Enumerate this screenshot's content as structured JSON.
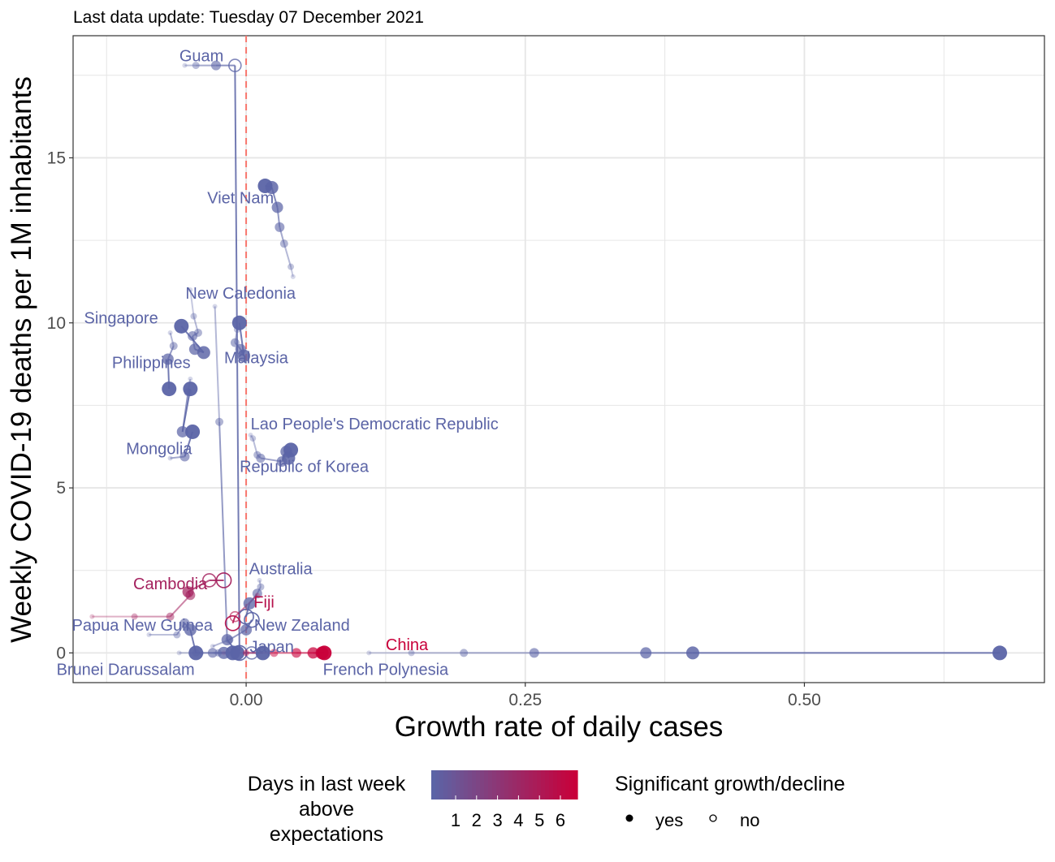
{
  "subtitle": "Last data update: Tuesday 07 December 2021",
  "chart_data": {
    "type": "scatter",
    "xlabel": "Growth rate of daily cases",
    "ylabel": "Weekly COVID-19 deaths per 1M inhabitants",
    "xlim": [
      -0.155,
      0.715
    ],
    "ylim": [
      -0.9,
      18.7
    ],
    "x_ticks": [
      0,
      0.25,
      0.5
    ],
    "x_tick_labels": [
      "0.00",
      "0.25",
      "0.50"
    ],
    "y_ticks": [
      0,
      5,
      10,
      15
    ],
    "y_tick_labels": [
      "0",
      "5",
      "10",
      "15"
    ],
    "grid": true,
    "reference_line_x": 0,
    "reference_line_color": "#f8766d",
    "color_low": "#5b64a6",
    "color_high": "#c8003a",
    "series": [
      {
        "name": "Guam",
        "label_at": [
          -0.04,
          18.1
        ],
        "days_above": 0,
        "points": [
          [
            -0.055,
            17.8
          ],
          [
            -0.045,
            17.8
          ],
          [
            -0.027,
            17.8
          ],
          [
            -0.01,
            17.8
          ],
          [
            -0.006,
            0.0
          ]
        ],
        "significant": [
          true,
          true,
          true,
          false,
          false
        ]
      },
      {
        "name": "Viet Nam",
        "label_at": [
          -0.005,
          13.8
        ],
        "days_above": 0,
        "points": [
          [
            0.042,
            11.4
          ],
          [
            0.04,
            11.7
          ],
          [
            0.034,
            12.4
          ],
          [
            0.03,
            12.9
          ],
          [
            0.028,
            13.5
          ],
          [
            0.023,
            14.1
          ],
          [
            0.017,
            14.15
          ]
        ],
        "significant": [
          true,
          true,
          true,
          true,
          true,
          true,
          true
        ]
      },
      {
        "name": "New Caledonia",
        "label_at": [
          -0.005,
          10.9
        ],
        "days_above": 0,
        "points": [
          [
            -0.028,
            10.5
          ],
          [
            -0.024,
            7.0
          ],
          [
            -0.017,
            0.4
          ],
          [
            -0.008,
            0.0
          ]
        ],
        "significant": [
          true,
          true,
          true,
          true
        ]
      },
      {
        "name": "Singapore",
        "label_at": [
          -0.112,
          10.15
        ],
        "days_above": 0,
        "points": [
          [
            -0.05,
            11.0
          ],
          [
            -0.047,
            10.2
          ],
          [
            -0.043,
            9.7
          ],
          [
            -0.048,
            9.6
          ],
          [
            -0.046,
            9.2
          ],
          [
            -0.038,
            9.1
          ],
          [
            -0.058,
            9.9
          ]
        ],
        "significant": [
          true,
          true,
          true,
          true,
          true,
          true,
          true
        ]
      },
      {
        "name": "Philippines",
        "label_at": [
          -0.085,
          8.8
        ],
        "days_above": 0,
        "points": [
          [
            -0.068,
            9.7
          ],
          [
            -0.065,
            9.3
          ],
          [
            -0.07,
            8.9
          ],
          [
            -0.069,
            8.0
          ]
        ],
        "significant": [
          true,
          true,
          true,
          true
        ]
      },
      {
        "name": "Malaysia",
        "label_at": [
          0.009,
          8.95
        ],
        "days_above": 0,
        "points": [
          [
            -0.01,
            10.1
          ],
          [
            -0.008,
            9.8
          ],
          [
            -0.01,
            9.4
          ],
          [
            -0.005,
            9.2
          ],
          [
            -0.002,
            9.0
          ],
          [
            -0.006,
            10.0
          ]
        ],
        "significant": [
          true,
          true,
          true,
          true,
          true,
          true
        ]
      },
      {
        "name": "Lao People's Democratic Republic",
        "label_at": [
          0.115,
          6.95
        ],
        "days_above": 0,
        "points": [
          [
            -0.05,
            8.3
          ],
          [
            -0.052,
            7.9
          ],
          [
            -0.057,
            6.7
          ],
          [
            -0.05,
            8.0
          ]
        ],
        "significant": [
          true,
          true,
          true,
          true
        ]
      },
      {
        "name": "Republic of Korea",
        "label_at": [
          0.052,
          5.65
        ],
        "days_above": 0,
        "points": [
          [
            0.004,
            6.6
          ],
          [
            0.006,
            6.5
          ],
          [
            0.01,
            6.0
          ],
          [
            0.013,
            5.9
          ],
          [
            0.032,
            5.8
          ],
          [
            0.036,
            6.1
          ],
          [
            0.038,
            5.9
          ],
          [
            0.04,
            6.15
          ]
        ],
        "significant": [
          true,
          true,
          true,
          true,
          true,
          true,
          true,
          true
        ]
      },
      {
        "name": "Mongolia",
        "label_at": [
          -0.078,
          6.2
        ],
        "days_above": 0,
        "points": [
          [
            -0.068,
            5.9
          ],
          [
            -0.055,
            5.95
          ],
          [
            -0.048,
            6.7
          ]
        ],
        "significant": [
          true,
          true,
          true
        ]
      },
      {
        "name": "Australia",
        "label_at": [
          0.031,
          2.55
        ],
        "days_above": 0,
        "points": [
          [
            0.012,
            2.2
          ],
          [
            0.013,
            2.0
          ],
          [
            0.01,
            1.8
          ],
          [
            0.003,
            1.5
          ],
          [
            0.0,
            1.1
          ]
        ],
        "significant": [
          true,
          true,
          true,
          true,
          false
        ]
      },
      {
        "name": "Cambodia",
        "label_at": [
          -0.068,
          2.1
        ],
        "days_above": 4,
        "points": [
          [
            -0.138,
            1.1
          ],
          [
            -0.1,
            1.1
          ],
          [
            -0.068,
            1.1
          ],
          [
            -0.05,
            1.75
          ],
          [
            -0.052,
            1.85
          ],
          [
            -0.033,
            2.2
          ],
          [
            -0.02,
            2.2
          ]
        ],
        "significant": [
          true,
          true,
          true,
          true,
          true,
          false,
          false
        ]
      },
      {
        "name": "Fiji",
        "label_at": [
          0.016,
          1.55
        ],
        "days_above": 5,
        "points": [
          [
            0.01,
            1.75
          ],
          [
            -0.01,
            1.1
          ],
          [
            -0.012,
            0.9
          ]
        ],
        "significant": [
          true,
          false,
          false
        ]
      },
      {
        "name": "Papua New Guinea",
        "label_at": [
          -0.093,
          0.85
        ],
        "days_above": 0,
        "points": [
          [
            -0.087,
            0.55
          ],
          [
            -0.062,
            0.55
          ],
          [
            -0.055,
            0.9
          ],
          [
            -0.05,
            0.7
          ],
          [
            -0.045,
            0.0
          ]
        ],
        "significant": [
          true,
          true,
          true,
          true,
          true
        ]
      },
      {
        "name": "New Zealand",
        "label_at": [
          0.05,
          0.85
        ],
        "days_above": 0,
        "points": [
          [
            -0.03,
            0.2
          ],
          [
            -0.015,
            0.4
          ],
          [
            0.0,
            0.7
          ],
          [
            0.005,
            1.0
          ]
        ],
        "significant": [
          true,
          true,
          true,
          false
        ]
      },
      {
        "name": "Japan",
        "label_at": [
          0.023,
          0.2
        ],
        "days_above": 0,
        "points": [
          [
            -0.04,
            0.0
          ],
          [
            -0.025,
            0.0
          ],
          [
            -0.01,
            0.0
          ],
          [
            0.005,
            0.0
          ],
          [
            0.015,
            0.0
          ]
        ],
        "significant": [
          true,
          true,
          true,
          false,
          true
        ]
      },
      {
        "name": "China",
        "label_at": [
          0.144,
          0.25
        ],
        "days_above": 6,
        "points": [
          [
            -0.02,
            0.0
          ],
          [
            0.0,
            0.0
          ],
          [
            0.025,
            0.0
          ],
          [
            0.045,
            0.0
          ],
          [
            0.06,
            0.0
          ],
          [
            0.068,
            0.0
          ],
          [
            0.07,
            0.0
          ]
        ],
        "significant": [
          true,
          true,
          true,
          true,
          true,
          true,
          true
        ]
      },
      {
        "name": "French Polynesia",
        "label_at": [
          0.125,
          -0.5
        ],
        "days_above": 0,
        "points": [
          [
            0.11,
            0.0
          ],
          [
            0.148,
            0.0
          ],
          [
            0.195,
            0.0
          ],
          [
            0.258,
            0.0
          ],
          [
            0.358,
            0.0
          ],
          [
            0.4,
            0.0
          ],
          [
            0.675,
            0.0
          ]
        ],
        "significant": [
          true,
          true,
          true,
          true,
          true,
          true,
          true
        ]
      },
      {
        "name": "Brunei Darussalam",
        "label_at": [
          -0.108,
          -0.5
        ],
        "days_above": 0,
        "points": [
          [
            -0.06,
            0.0
          ],
          [
            -0.045,
            0.0
          ],
          [
            -0.03,
            0.0
          ],
          [
            -0.02,
            0.0
          ],
          [
            -0.012,
            0.0
          ]
        ],
        "significant": [
          true,
          true,
          true,
          true,
          true
        ]
      }
    ]
  },
  "legend": {
    "color_title": "Days in last week above expectations",
    "color_title_lines": [
      "Days in last week",
      "above",
      "expectations"
    ],
    "color_ticks": [
      "1",
      "2",
      "3",
      "4",
      "5",
      "6"
    ],
    "shape_title": "Significant growth/decline",
    "shape_labels": [
      "yes",
      "no"
    ]
  }
}
